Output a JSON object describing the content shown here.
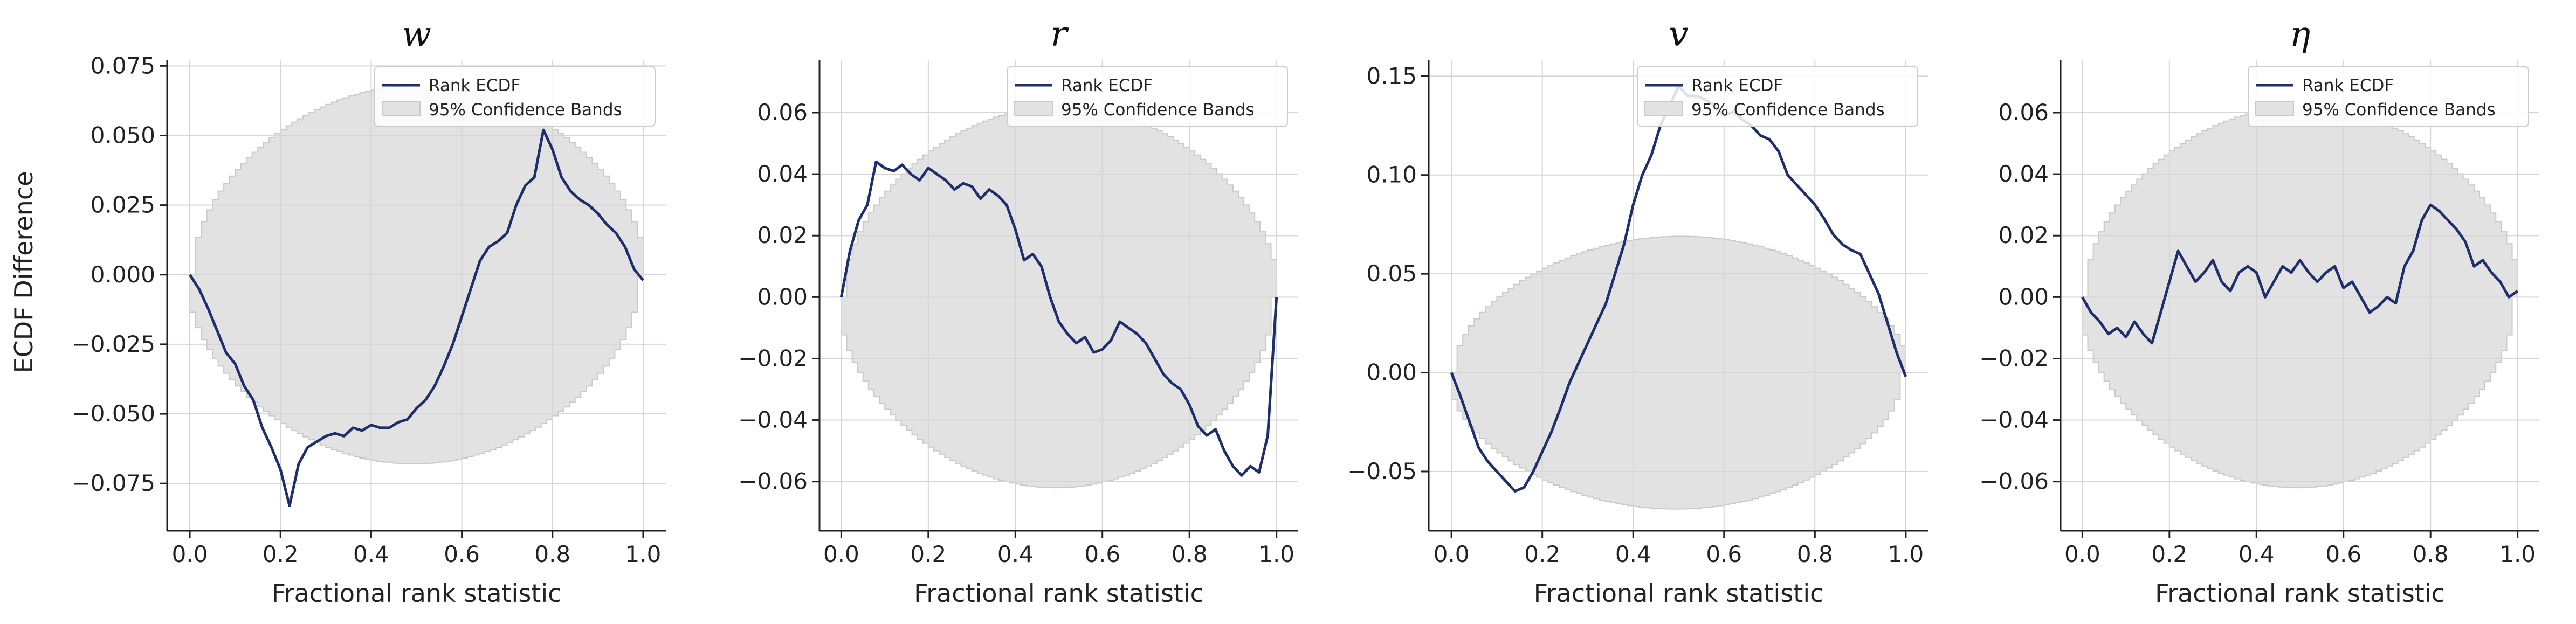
{
  "figure": {
    "ylabel": "ECDF Difference",
    "legend_line_label": "Rank ECDF",
    "legend_band_label": "95% Confidence Bands",
    "line_color": "#1f2f6e",
    "band_color": "#e2e2e2",
    "grid_color": "#d5d5d5"
  },
  "chart_data": [
    {
      "type": "line",
      "title": "w",
      "xlabel": "Fractional rank statistic",
      "ylabel": "ECDF Difference",
      "xlim": [
        -0.05,
        1.05
      ],
      "ylim": [
        -0.092,
        0.077
      ],
      "xticks": [
        "0.0",
        "0.2",
        "0.4",
        "0.6",
        "0.8",
        "1.0"
      ],
      "yticks": [
        "−0.075",
        "−0.050",
        "−0.025",
        "0.000",
        "0.025",
        "0.050",
        "0.075"
      ],
      "ytick_values": [
        -0.075,
        -0.05,
        -0.025,
        0.0,
        0.025,
        0.05,
        0.075
      ],
      "grid": true,
      "legend": "top-right",
      "band_half_width": 0.068,
      "series": [
        {
          "name": "Rank ECDF",
          "x": [
            0.0,
            0.02,
            0.04,
            0.06,
            0.08,
            0.1,
            0.12,
            0.14,
            0.16,
            0.18,
            0.2,
            0.22,
            0.24,
            0.26,
            0.28,
            0.3,
            0.32,
            0.34,
            0.36,
            0.38,
            0.4,
            0.42,
            0.44,
            0.46,
            0.48,
            0.5,
            0.52,
            0.54,
            0.56,
            0.58,
            0.6,
            0.62,
            0.64,
            0.66,
            0.68,
            0.7,
            0.72,
            0.74,
            0.76,
            0.78,
            0.8,
            0.82,
            0.84,
            0.86,
            0.88,
            0.9,
            0.92,
            0.94,
            0.96,
            0.98,
            1.0
          ],
          "y": [
            0.0,
            -0.005,
            -0.012,
            -0.02,
            -0.028,
            -0.032,
            -0.04,
            -0.045,
            -0.055,
            -0.062,
            -0.07,
            -0.083,
            -0.068,
            -0.062,
            -0.06,
            -0.058,
            -0.057,
            -0.058,
            -0.055,
            -0.056,
            -0.054,
            -0.055,
            -0.055,
            -0.053,
            -0.052,
            -0.048,
            -0.045,
            -0.04,
            -0.033,
            -0.025,
            -0.015,
            -0.005,
            0.005,
            0.01,
            0.012,
            0.015,
            0.025,
            0.032,
            0.035,
            0.052,
            0.045,
            0.035,
            0.03,
            0.027,
            0.025,
            0.022,
            0.018,
            0.015,
            0.01,
            0.002,
            -0.002
          ]
        }
      ]
    },
    {
      "type": "line",
      "title": "r",
      "xlabel": "Fractional rank statistic",
      "xlim": [
        -0.05,
        1.05
      ],
      "ylim": [
        -0.076,
        0.077
      ],
      "xticks": [
        "0.0",
        "0.2",
        "0.4",
        "0.6",
        "0.8",
        "1.0"
      ],
      "yticks": [
        "−0.06",
        "−0.04",
        "−0.02",
        "0.00",
        "0.02",
        "0.04",
        "0.06"
      ],
      "ytick_values": [
        -0.06,
        -0.04,
        -0.02,
        0.0,
        0.02,
        0.04,
        0.06
      ],
      "grid": true,
      "legend": "top-right",
      "band_half_width": 0.062,
      "series": [
        {
          "name": "Rank ECDF",
          "x": [
            0.0,
            0.02,
            0.04,
            0.06,
            0.08,
            0.1,
            0.12,
            0.14,
            0.16,
            0.18,
            0.2,
            0.22,
            0.24,
            0.26,
            0.28,
            0.3,
            0.32,
            0.34,
            0.36,
            0.38,
            0.4,
            0.42,
            0.44,
            0.46,
            0.48,
            0.5,
            0.52,
            0.54,
            0.56,
            0.58,
            0.6,
            0.62,
            0.64,
            0.66,
            0.68,
            0.7,
            0.72,
            0.74,
            0.76,
            0.78,
            0.8,
            0.82,
            0.84,
            0.86,
            0.88,
            0.9,
            0.92,
            0.94,
            0.96,
            0.98,
            1.0
          ],
          "y": [
            0.0,
            0.015,
            0.025,
            0.03,
            0.044,
            0.042,
            0.041,
            0.043,
            0.04,
            0.038,
            0.042,
            0.04,
            0.038,
            0.035,
            0.037,
            0.036,
            0.032,
            0.035,
            0.033,
            0.03,
            0.022,
            0.012,
            0.014,
            0.01,
            0.0,
            -0.008,
            -0.012,
            -0.015,
            -0.013,
            -0.018,
            -0.017,
            -0.014,
            -0.008,
            -0.01,
            -0.012,
            -0.015,
            -0.02,
            -0.025,
            -0.028,
            -0.03,
            -0.035,
            -0.042,
            -0.045,
            -0.043,
            -0.05,
            -0.055,
            -0.058,
            -0.055,
            -0.057,
            -0.045,
            0.0
          ]
        }
      ]
    },
    {
      "type": "line",
      "title": "v",
      "xlabel": "Fractional rank statistic",
      "xlim": [
        -0.05,
        1.05
      ],
      "ylim": [
        -0.08,
        0.158
      ],
      "xticks": [
        "0.0",
        "0.2",
        "0.4",
        "0.6",
        "0.8",
        "1.0"
      ],
      "yticks": [
        "−0.05",
        "0.00",
        "0.05",
        "0.10",
        "0.15"
      ],
      "ytick_values": [
        -0.05,
        0.0,
        0.05,
        0.1,
        0.15
      ],
      "grid": true,
      "legend": "top-right",
      "band_half_width": 0.069,
      "series": [
        {
          "name": "Rank ECDF",
          "x": [
            0.0,
            0.02,
            0.04,
            0.06,
            0.08,
            0.1,
            0.12,
            0.14,
            0.16,
            0.18,
            0.2,
            0.22,
            0.24,
            0.26,
            0.28,
            0.3,
            0.32,
            0.34,
            0.36,
            0.38,
            0.4,
            0.42,
            0.44,
            0.46,
            0.48,
            0.5,
            0.52,
            0.54,
            0.56,
            0.58,
            0.6,
            0.62,
            0.64,
            0.66,
            0.68,
            0.7,
            0.72,
            0.74,
            0.76,
            0.78,
            0.8,
            0.82,
            0.84,
            0.86,
            0.88,
            0.9,
            0.92,
            0.94,
            0.96,
            0.98,
            1.0
          ],
          "y": [
            0.0,
            -0.012,
            -0.025,
            -0.038,
            -0.045,
            -0.05,
            -0.055,
            -0.06,
            -0.058,
            -0.05,
            -0.04,
            -0.03,
            -0.018,
            -0.005,
            0.005,
            0.015,
            0.025,
            0.035,
            0.05,
            0.065,
            0.085,
            0.1,
            0.11,
            0.125,
            0.135,
            0.145,
            0.14,
            0.14,
            0.138,
            0.135,
            0.13,
            0.132,
            0.128,
            0.125,
            0.12,
            0.118,
            0.112,
            0.1,
            0.095,
            0.09,
            0.085,
            0.078,
            0.07,
            0.065,
            0.062,
            0.06,
            0.05,
            0.04,
            0.025,
            0.01,
            -0.002
          ]
        }
      ]
    },
    {
      "type": "line",
      "title": "η",
      "xlabel": "Fractional rank statistic",
      "xlim": [
        -0.05,
        1.05
      ],
      "ylim": [
        -0.076,
        0.077
      ],
      "xticks": [
        "0.0",
        "0.2",
        "0.4",
        "0.6",
        "0.8",
        "1.0"
      ],
      "yticks": [
        "−0.06",
        "−0.04",
        "−0.02",
        "0.00",
        "0.02",
        "0.04",
        "0.06"
      ],
      "ytick_values": [
        -0.06,
        -0.04,
        -0.02,
        0.0,
        0.02,
        0.04,
        0.06
      ],
      "grid": true,
      "legend": "top-right",
      "band_half_width": 0.062,
      "series": [
        {
          "name": "Rank ECDF",
          "x": [
            0.0,
            0.02,
            0.04,
            0.06,
            0.08,
            0.1,
            0.12,
            0.14,
            0.16,
            0.18,
            0.2,
            0.22,
            0.24,
            0.26,
            0.28,
            0.3,
            0.32,
            0.34,
            0.36,
            0.38,
            0.4,
            0.42,
            0.44,
            0.46,
            0.48,
            0.5,
            0.52,
            0.54,
            0.56,
            0.58,
            0.6,
            0.62,
            0.64,
            0.66,
            0.68,
            0.7,
            0.72,
            0.74,
            0.76,
            0.78,
            0.8,
            0.82,
            0.84,
            0.86,
            0.88,
            0.9,
            0.92,
            0.94,
            0.96,
            0.98,
            1.0
          ],
          "y": [
            0.0,
            -0.005,
            -0.008,
            -0.012,
            -0.01,
            -0.013,
            -0.008,
            -0.012,
            -0.015,
            -0.005,
            0.005,
            0.015,
            0.01,
            0.005,
            0.008,
            0.012,
            0.005,
            0.002,
            0.008,
            0.01,
            0.008,
            0.0,
            0.005,
            0.01,
            0.008,
            0.012,
            0.008,
            0.005,
            0.008,
            0.01,
            0.003,
            0.005,
            0.0,
            -0.005,
            -0.003,
            0.0,
            -0.002,
            0.01,
            0.015,
            0.025,
            0.03,
            0.028,
            0.025,
            0.022,
            0.018,
            0.01,
            0.012,
            0.008,
            0.005,
            0.0,
            0.002
          ]
        }
      ]
    }
  ]
}
